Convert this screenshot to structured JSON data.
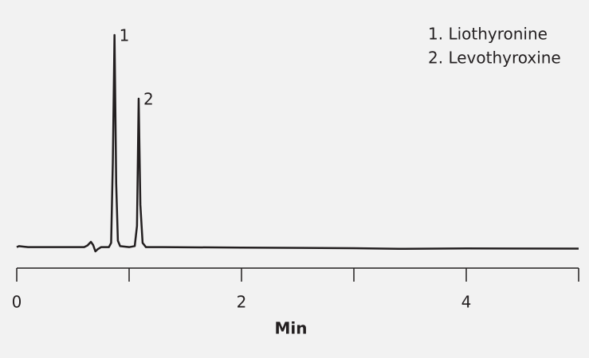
{
  "chart_data": {
    "type": "line",
    "x_label": "Min",
    "x": [
      0,
      0.02,
      0.05,
      0.1,
      0.5,
      0.6,
      0.63,
      0.66,
      0.68,
      0.7,
      0.72,
      0.75,
      0.82,
      0.84,
      0.855,
      0.87,
      0.885,
      0.9,
      0.92,
      1.0,
      1.05,
      1.07,
      1.085,
      1.1,
      1.12,
      1.15,
      1.3,
      2,
      3,
      3.4,
      4,
      5
    ],
    "series": [
      {
        "color": "#231f20",
        "values": [
          0,
          0.5,
          0.3,
          0,
          0,
          0,
          0.8,
          2.5,
          1,
          -2,
          -1,
          0,
          0,
          2,
          40,
          100,
          30,
          3,
          0.5,
          0,
          0.5,
          10,
          70,
          20,
          2,
          0,
          0,
          -0.2,
          -0.5,
          -0.8,
          -0.6,
          -0.7
        ]
      }
    ],
    "xlim": [
      0,
      5
    ],
    "xticks": [
      0,
      2,
      4
    ],
    "xminor_ticks": [
      1,
      3,
      5
    ],
    "ylim": [
      -5,
      100
    ],
    "peak_labels": [
      "1",
      "2"
    ],
    "legend_items": [
      "1. Liothyronine",
      "2. Levothyroxine"
    ]
  }
}
